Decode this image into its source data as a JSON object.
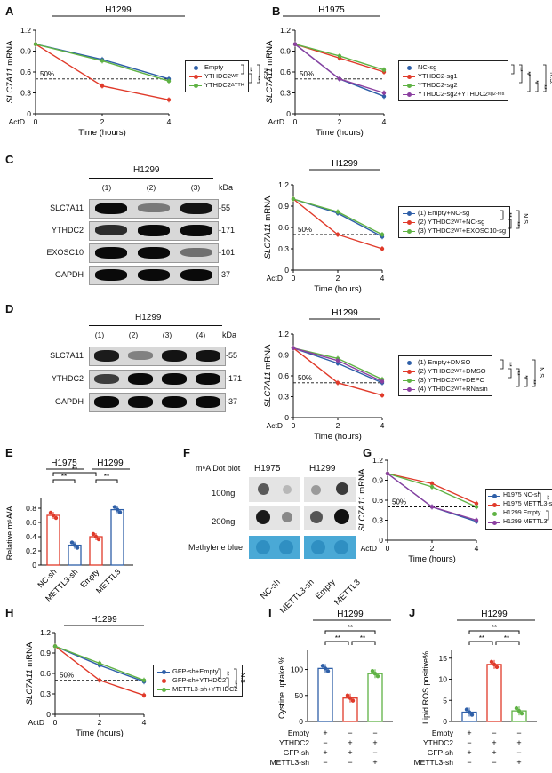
{
  "panels": {
    "A": {
      "letter": "A",
      "title": "H1299",
      "ylabel_gene": "SLC7A11",
      "ylabel_rest": " mRNA",
      "xlabel": "Time (hours)",
      "actd": "ActD",
      "pct": "50%",
      "yticks": [
        "0",
        "0.3",
        "0.6",
        "0.9",
        "1.2"
      ],
      "xticks": [
        "0",
        "2",
        "4"
      ],
      "legend": [
        "Empty",
        "YTHDC2",
        "YTHDC2"
      ],
      "legend_sup": [
        "",
        "WT",
        "ΔYTH"
      ],
      "sig": [
        "**",
        "**",
        "N.S"
      ]
    },
    "B": {
      "letter": "B",
      "title": "H1975",
      "ylabel_gene": "SLC7A11",
      "ylabel_rest": " mRNA",
      "xlabel": "Time (hours)",
      "actd": "ActD",
      "pct": "50%",
      "yticks": [
        "0",
        "0.3",
        "0.6",
        "0.9",
        "1.2"
      ],
      "xticks": [
        "0",
        "2",
        "4"
      ],
      "legend": [
        "NC-sg",
        "YTHDC2-sg1",
        "YTHDC2-sg2",
        "YTHDC2-sg2+YTHDC2"
      ],
      "legend_sup": [
        "",
        "",
        "",
        "sg2-res"
      ],
      "sig": [
        "**",
        "**",
        "**",
        "**",
        "N.S."
      ]
    },
    "C": {
      "letter": "C",
      "blot_title": "H1299",
      "lanes": [
        "(1)",
        "(2)",
        "(3)"
      ],
      "kda": "kDa",
      "rows": [
        {
          "name": "SLC7A11",
          "kda": "55"
        },
        {
          "name": "YTHDC2",
          "kda": "171"
        },
        {
          "name": "EXOSC10",
          "kda": "101"
        },
        {
          "name": "GAPDH",
          "kda": "37"
        }
      ],
      "title": "H1299",
      "ylabel_gene": "SLC7A11",
      "ylabel_rest": " mRNA",
      "xlabel": "Time (hours)",
      "actd": "ActD",
      "pct": "50%",
      "yticks": [
        "0",
        "0.3",
        "0.6",
        "0.9",
        "1.2"
      ],
      "xticks": [
        "0",
        "2",
        "4"
      ],
      "legend": [
        "(1) Empty+NC-sg",
        "(2) YTHDC2",
        "(3) YTHDC2"
      ],
      "legend_tail": [
        "",
        "+NC-sg",
        "+EXOSC10-sg"
      ],
      "legend_sup": [
        "",
        "WT",
        "WT"
      ],
      "sig": [
        "**",
        "**",
        "N.S."
      ]
    },
    "D": {
      "letter": "D",
      "blot_title": "H1299",
      "lanes": [
        "(1)",
        "(2)",
        "(3)",
        "(4)"
      ],
      "kda": "kDa",
      "rows": [
        {
          "name": "SLC7A11",
          "kda": "55"
        },
        {
          "name": "YTHDC2",
          "kda": "171"
        },
        {
          "name": "GAPDH",
          "kda": "37"
        }
      ],
      "title": "H1299",
      "ylabel_gene": "SLC7A11",
      "ylabel_rest": " mRNA",
      "xlabel": "Time (hours)",
      "actd": "ActD",
      "pct": "50%",
      "yticks": [
        "0",
        "0.3",
        "0.6",
        "0.9",
        "1.2"
      ],
      "xticks": [
        "0",
        "2",
        "4"
      ],
      "legend": [
        "(1) Empty+DMSO",
        "(2) YTHDC2",
        "(3) YTHDC2",
        "(4) YTHDC2"
      ],
      "legend_tail": [
        "",
        "+DMSO",
        "+DEPC",
        "+RNasin"
      ],
      "legend_sup": [
        "",
        "WT",
        "WT",
        "WT"
      ],
      "sig": [
        "**",
        "**",
        "**",
        "**",
        "N.S."
      ]
    },
    "E": {
      "letter": "E",
      "groups": [
        "H1975",
        "H1299"
      ],
      "ylabel": "Relative m⁶A/A",
      "yticks": [
        "0",
        "0.2",
        "0.4",
        "0.6",
        "0.8"
      ],
      "xlabels": [
        "NC-sh",
        "METTL3-sh",
        "Empty",
        "METTL3"
      ],
      "sig": [
        "**",
        "**",
        "**"
      ]
    },
    "F": {
      "letter": "F",
      "header": "m⁶A Dot  blot",
      "cols": [
        "H1975",
        "H1299"
      ],
      "rows": [
        "100ng",
        "200ng",
        "Methylene blue"
      ],
      "xlabels": [
        "NC-sh",
        "METTL3-sh",
        "Empty",
        "METTL3"
      ]
    },
    "G": {
      "letter": "G",
      "ylabel_gene": "SLC7A11",
      "ylabel_rest": " mRNA",
      "xlabel": "Time (hours)",
      "actd": "ActD",
      "pct": "50%",
      "yticks": [
        "0",
        "0.3",
        "0.6",
        "0.9",
        "1.2"
      ],
      "xticks": [
        "0",
        "2",
        "4"
      ],
      "legend": [
        "H1975 NC-sh",
        "H1975 METTL3-sh",
        "H1299 Empty",
        "H1299 METTL3"
      ],
      "sig": [
        "**",
        "**",
        "**"
      ]
    },
    "H": {
      "letter": "H",
      "title": "H1299",
      "ylabel_gene": "SLC7A11",
      "ylabel_rest": " mRNA",
      "xlabel": "Time (hours)",
      "actd": "ActD",
      "pct": "50%",
      "yticks": [
        "0",
        "0.3",
        "0.6",
        "0.9",
        "1.2"
      ],
      "xticks": [
        "0",
        "2",
        "4"
      ],
      "legend": [
        "GFP-sh+Empty",
        "GFP-sh+YTHDC2",
        "METTL3-sh+YTHDC2"
      ],
      "sig": [
        "**",
        "**",
        "N.S"
      ]
    },
    "I": {
      "letter": "I",
      "title": "H1299",
      "ylabel": "Cystine uptake %",
      "yticks": [
        "0",
        "50",
        "100"
      ],
      "conds": [
        "Empty",
        "YTHDC2",
        "GFP-sh",
        "METTL3-sh"
      ],
      "marks": [
        [
          "+",
          "−",
          "−"
        ],
        [
          "−",
          "+",
          "+"
        ],
        [
          "+",
          "+",
          "−"
        ],
        [
          "−",
          "−",
          "+"
        ]
      ],
      "sig": [
        "**",
        "**",
        "**"
      ]
    },
    "J": {
      "letter": "J",
      "title": "H1299",
      "ylabel": "Lipid ROS positive%",
      "yticks": [
        "0",
        "5",
        "10",
        "15"
      ],
      "conds": [
        "Empty",
        "YTHDC2",
        "GFP-sh",
        "METTL3-sh"
      ],
      "marks": [
        [
          "+",
          "−",
          "−"
        ],
        [
          "−",
          "+",
          "+"
        ],
        [
          "+",
          "+",
          "−"
        ],
        [
          "−",
          "−",
          "+"
        ]
      ],
      "sig": [
        "**",
        "**",
        "**"
      ]
    }
  },
  "colors": {
    "blue": "#2e5fa8",
    "red": "#e03a2a",
    "green": "#5fb244",
    "purple": "#8b3fa0"
  },
  "chart_data": [
    {
      "panel": "A",
      "type": "line",
      "x": [
        0,
        2,
        4
      ],
      "ylim": [
        0,
        1.2
      ],
      "xlabel": "Time (hours)",
      "ylabel": "SLC7A11 mRNA",
      "title": "H1299",
      "series": [
        {
          "name": "Empty",
          "values": [
            1.0,
            0.78,
            0.5
          ]
        },
        {
          "name": "YTHDC2 WT",
          "values": [
            1.0,
            0.4,
            0.2
          ]
        },
        {
          "name": "YTHDC2 ΔYTH",
          "values": [
            1.0,
            0.76,
            0.47
          ]
        }
      ]
    },
    {
      "panel": "B",
      "type": "line",
      "x": [
        0,
        2,
        4
      ],
      "ylim": [
        0,
        1.2
      ],
      "xlabel": "Time (hours)",
      "ylabel": "SLC7A11 mRNA",
      "title": "H1975",
      "series": [
        {
          "name": "NC-sg",
          "values": [
            1.0,
            0.5,
            0.25
          ]
        },
        {
          "name": "YTHDC2-sg1",
          "values": [
            1.0,
            0.8,
            0.6
          ]
        },
        {
          "name": "YTHDC2-sg2",
          "values": [
            1.0,
            0.83,
            0.63
          ]
        },
        {
          "name": "YTHDC2-sg2+YTHDC2 sg2-res",
          "values": [
            1.0,
            0.5,
            0.3
          ]
        }
      ]
    },
    {
      "panel": "C",
      "type": "line",
      "x": [
        0,
        2,
        4
      ],
      "ylim": [
        0,
        1.2
      ],
      "xlabel": "Time (hours)",
      "ylabel": "SLC7A11 mRNA",
      "title": "H1299",
      "series": [
        {
          "name": "(1) Empty+NC-sg",
          "values": [
            1.0,
            0.8,
            0.47
          ]
        },
        {
          "name": "(2) YTHDC2 WT+NC-sg",
          "values": [
            1.0,
            0.5,
            0.3
          ]
        },
        {
          "name": "(3) YTHDC2 WT+EXOSC10-sg",
          "values": [
            1.0,
            0.82,
            0.5
          ]
        }
      ]
    },
    {
      "panel": "D",
      "type": "line",
      "x": [
        0,
        2,
        4
      ],
      "ylim": [
        0,
        1.2
      ],
      "xlabel": "Time (hours)",
      "ylabel": "SLC7A11 mRNA",
      "title": "H1299",
      "series": [
        {
          "name": "(1) Empty+DMSO",
          "values": [
            1.0,
            0.78,
            0.5
          ]
        },
        {
          "name": "(2) YTHDC2 WT+DMSO",
          "values": [
            1.0,
            0.5,
            0.32
          ]
        },
        {
          "name": "(3) YTHDC2 WT+DEPC",
          "values": [
            1.0,
            0.85,
            0.55
          ]
        },
        {
          "name": "(4) YTHDC2 WT+RNasin",
          "values": [
            1.0,
            0.82,
            0.52
          ]
        }
      ]
    },
    {
      "panel": "E",
      "type": "bar",
      "categories": [
        "NC-sh",
        "METTL3-sh",
        "Empty",
        "METTL3"
      ],
      "values": [
        0.7,
        0.28,
        0.4,
        0.78
      ],
      "ylim": [
        0,
        0.9
      ],
      "ylabel": "Relative m⁶A/A"
    },
    {
      "panel": "G",
      "type": "line",
      "x": [
        0,
        2,
        4
      ],
      "ylim": [
        0,
        1.2
      ],
      "xlabel": "Time (hours)",
      "ylabel": "SLC7A11 mRNA",
      "series": [
        {
          "name": "H1975 NC-sh",
          "values": [
            1.0,
            0.5,
            0.28
          ]
        },
        {
          "name": "H1975 METTL3-sh",
          "values": [
            1.0,
            0.85,
            0.55
          ]
        },
        {
          "name": "H1299 Empty",
          "values": [
            1.0,
            0.8,
            0.5
          ]
        },
        {
          "name": "H1299 METTL3",
          "values": [
            1.0,
            0.5,
            0.3
          ]
        }
      ]
    },
    {
      "panel": "H",
      "type": "line",
      "x": [
        0,
        2,
        4
      ],
      "ylim": [
        0,
        1.2
      ],
      "xlabel": "Time (hours)",
      "ylabel": "SLC7A11 mRNA",
      "title": "H1299",
      "series": [
        {
          "name": "GFP-sh+Empty",
          "values": [
            1.0,
            0.72,
            0.48
          ]
        },
        {
          "name": "GFP-sh+YTHDC2",
          "values": [
            1.0,
            0.5,
            0.28
          ]
        },
        {
          "name": "METTL3-sh+YTHDC2",
          "values": [
            1.0,
            0.75,
            0.5
          ]
        }
      ]
    },
    {
      "panel": "I",
      "type": "bar",
      "categories": [
        "1",
        "2",
        "3"
      ],
      "values": [
        102,
        45,
        92
      ],
      "ylim": [
        0,
        130
      ],
      "ylabel": "Cystine uptake %",
      "title": "H1299"
    },
    {
      "panel": "J",
      "type": "bar",
      "categories": [
        "1",
        "2",
        "3"
      ],
      "values": [
        2.2,
        13.5,
        2.5
      ],
      "ylim": [
        0,
        16
      ],
      "ylabel": "Lipid ROS positive%",
      "title": "H1299"
    }
  ]
}
